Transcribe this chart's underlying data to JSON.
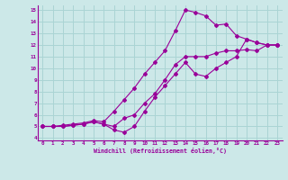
{
  "xlabel": "Windchill (Refroidissement éolien,°C)",
  "bg_color": "#cce8e8",
  "line_color": "#990099",
  "grid_color": "#aad4d4",
  "xlim": [
    -0.5,
    23.5
  ],
  "ylim": [
    3.8,
    15.4
  ],
  "xticks": [
    0,
    1,
    2,
    3,
    4,
    5,
    6,
    7,
    8,
    9,
    10,
    11,
    12,
    13,
    14,
    15,
    16,
    17,
    18,
    19,
    20,
    21,
    22,
    23
  ],
  "yticks": [
    4,
    5,
    6,
    7,
    8,
    9,
    10,
    11,
    12,
    13,
    14,
    15
  ],
  "line1_x": [
    0,
    1,
    2,
    3,
    4,
    5,
    6,
    7,
    8,
    9,
    10,
    11,
    12,
    13,
    14,
    15,
    16,
    17,
    18,
    19,
    20,
    21,
    22,
    23
  ],
  "line1_y": [
    5,
    5,
    5,
    5.1,
    5.2,
    5.4,
    5.2,
    4.7,
    4.5,
    5.0,
    6.3,
    7.5,
    8.5,
    9.5,
    10.5,
    9.5,
    9.3,
    10.0,
    10.5,
    11.0,
    12.5,
    12.2,
    12.0,
    12.0
  ],
  "line2_x": [
    0,
    1,
    2,
    3,
    4,
    5,
    6,
    7,
    8,
    9,
    10,
    11,
    12,
    13,
    14,
    15,
    16,
    17,
    18,
    19,
    20,
    21,
    22,
    23
  ],
  "line2_y": [
    5,
    5,
    5.1,
    5.2,
    5.3,
    5.5,
    5.4,
    6.3,
    7.3,
    8.3,
    9.5,
    10.5,
    11.5,
    13.2,
    15.0,
    14.8,
    14.5,
    13.7,
    13.8,
    12.8,
    12.5,
    12.2,
    12.0,
    12.0
  ],
  "line3_x": [
    0,
    1,
    2,
    3,
    4,
    5,
    6,
    7,
    8,
    9,
    10,
    11,
    12,
    13,
    14,
    15,
    16,
    17,
    18,
    19,
    20,
    21,
    22,
    23
  ],
  "line3_y": [
    5,
    5,
    5.0,
    5.1,
    5.2,
    5.4,
    5.2,
    5.0,
    5.7,
    6.0,
    7.0,
    7.8,
    9.0,
    10.3,
    11.0,
    11.0,
    11.0,
    11.3,
    11.5,
    11.5,
    11.6,
    11.5,
    12.0,
    12.0
  ]
}
